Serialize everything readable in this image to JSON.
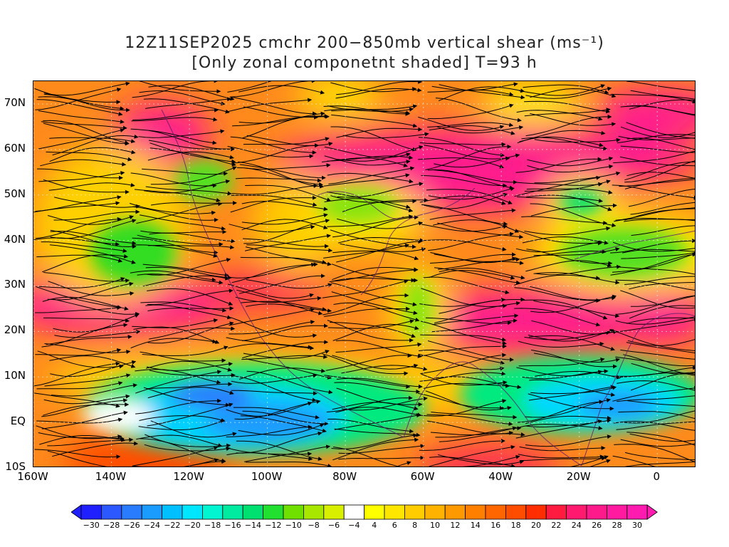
{
  "title": {
    "line1": "12Z11SEP2025 cmchr 200−850mb vertical shear (ms⁻¹)",
    "line2": "[Only zonal componetnt shaded] T=93 h"
  },
  "map": {
    "lat_labels": [
      "70N",
      "60N",
      "50N",
      "40N",
      "30N",
      "20N",
      "10N",
      "EQ",
      "10S"
    ],
    "lon_labels": [
      "160W",
      "140W",
      "120W",
      "100W",
      "80W",
      "60W",
      "40W",
      "20W",
      "0"
    ],
    "lat_range": [
      -10,
      75
    ],
    "lon_range": [
      -160,
      10
    ]
  },
  "colorbar": {
    "labels": [
      "−30",
      "−28",
      "−26",
      "−24",
      "−22",
      "−20",
      "−18",
      "−16",
      "−14",
      "−12",
      "−10",
      "−8",
      "−6",
      "−4",
      "4",
      "6",
      "8",
      "10",
      "12",
      "14",
      "16",
      "18",
      "20",
      "22",
      "24",
      "26",
      "28",
      "30"
    ],
    "colors": [
      "#1f1fff",
      "#2b58ff",
      "#2a7cff",
      "#1a9cff",
      "#00c0ff",
      "#00e6ff",
      "#00f5d0",
      "#00eaa0",
      "#00e070",
      "#22e030",
      "#70e000",
      "#a8e800",
      "#d8f000",
      "#ffffff",
      "#ffff00",
      "#ffe600",
      "#ffcc00",
      "#ffb300",
      "#ff9900",
      "#ff8000",
      "#ff6600",
      "#ff4d00",
      "#ff2e00",
      "#ff1a40",
      "#ff1a70",
      "#ff1a8c",
      "#ff1aa0",
      "#ff1ab0"
    ]
  }
}
